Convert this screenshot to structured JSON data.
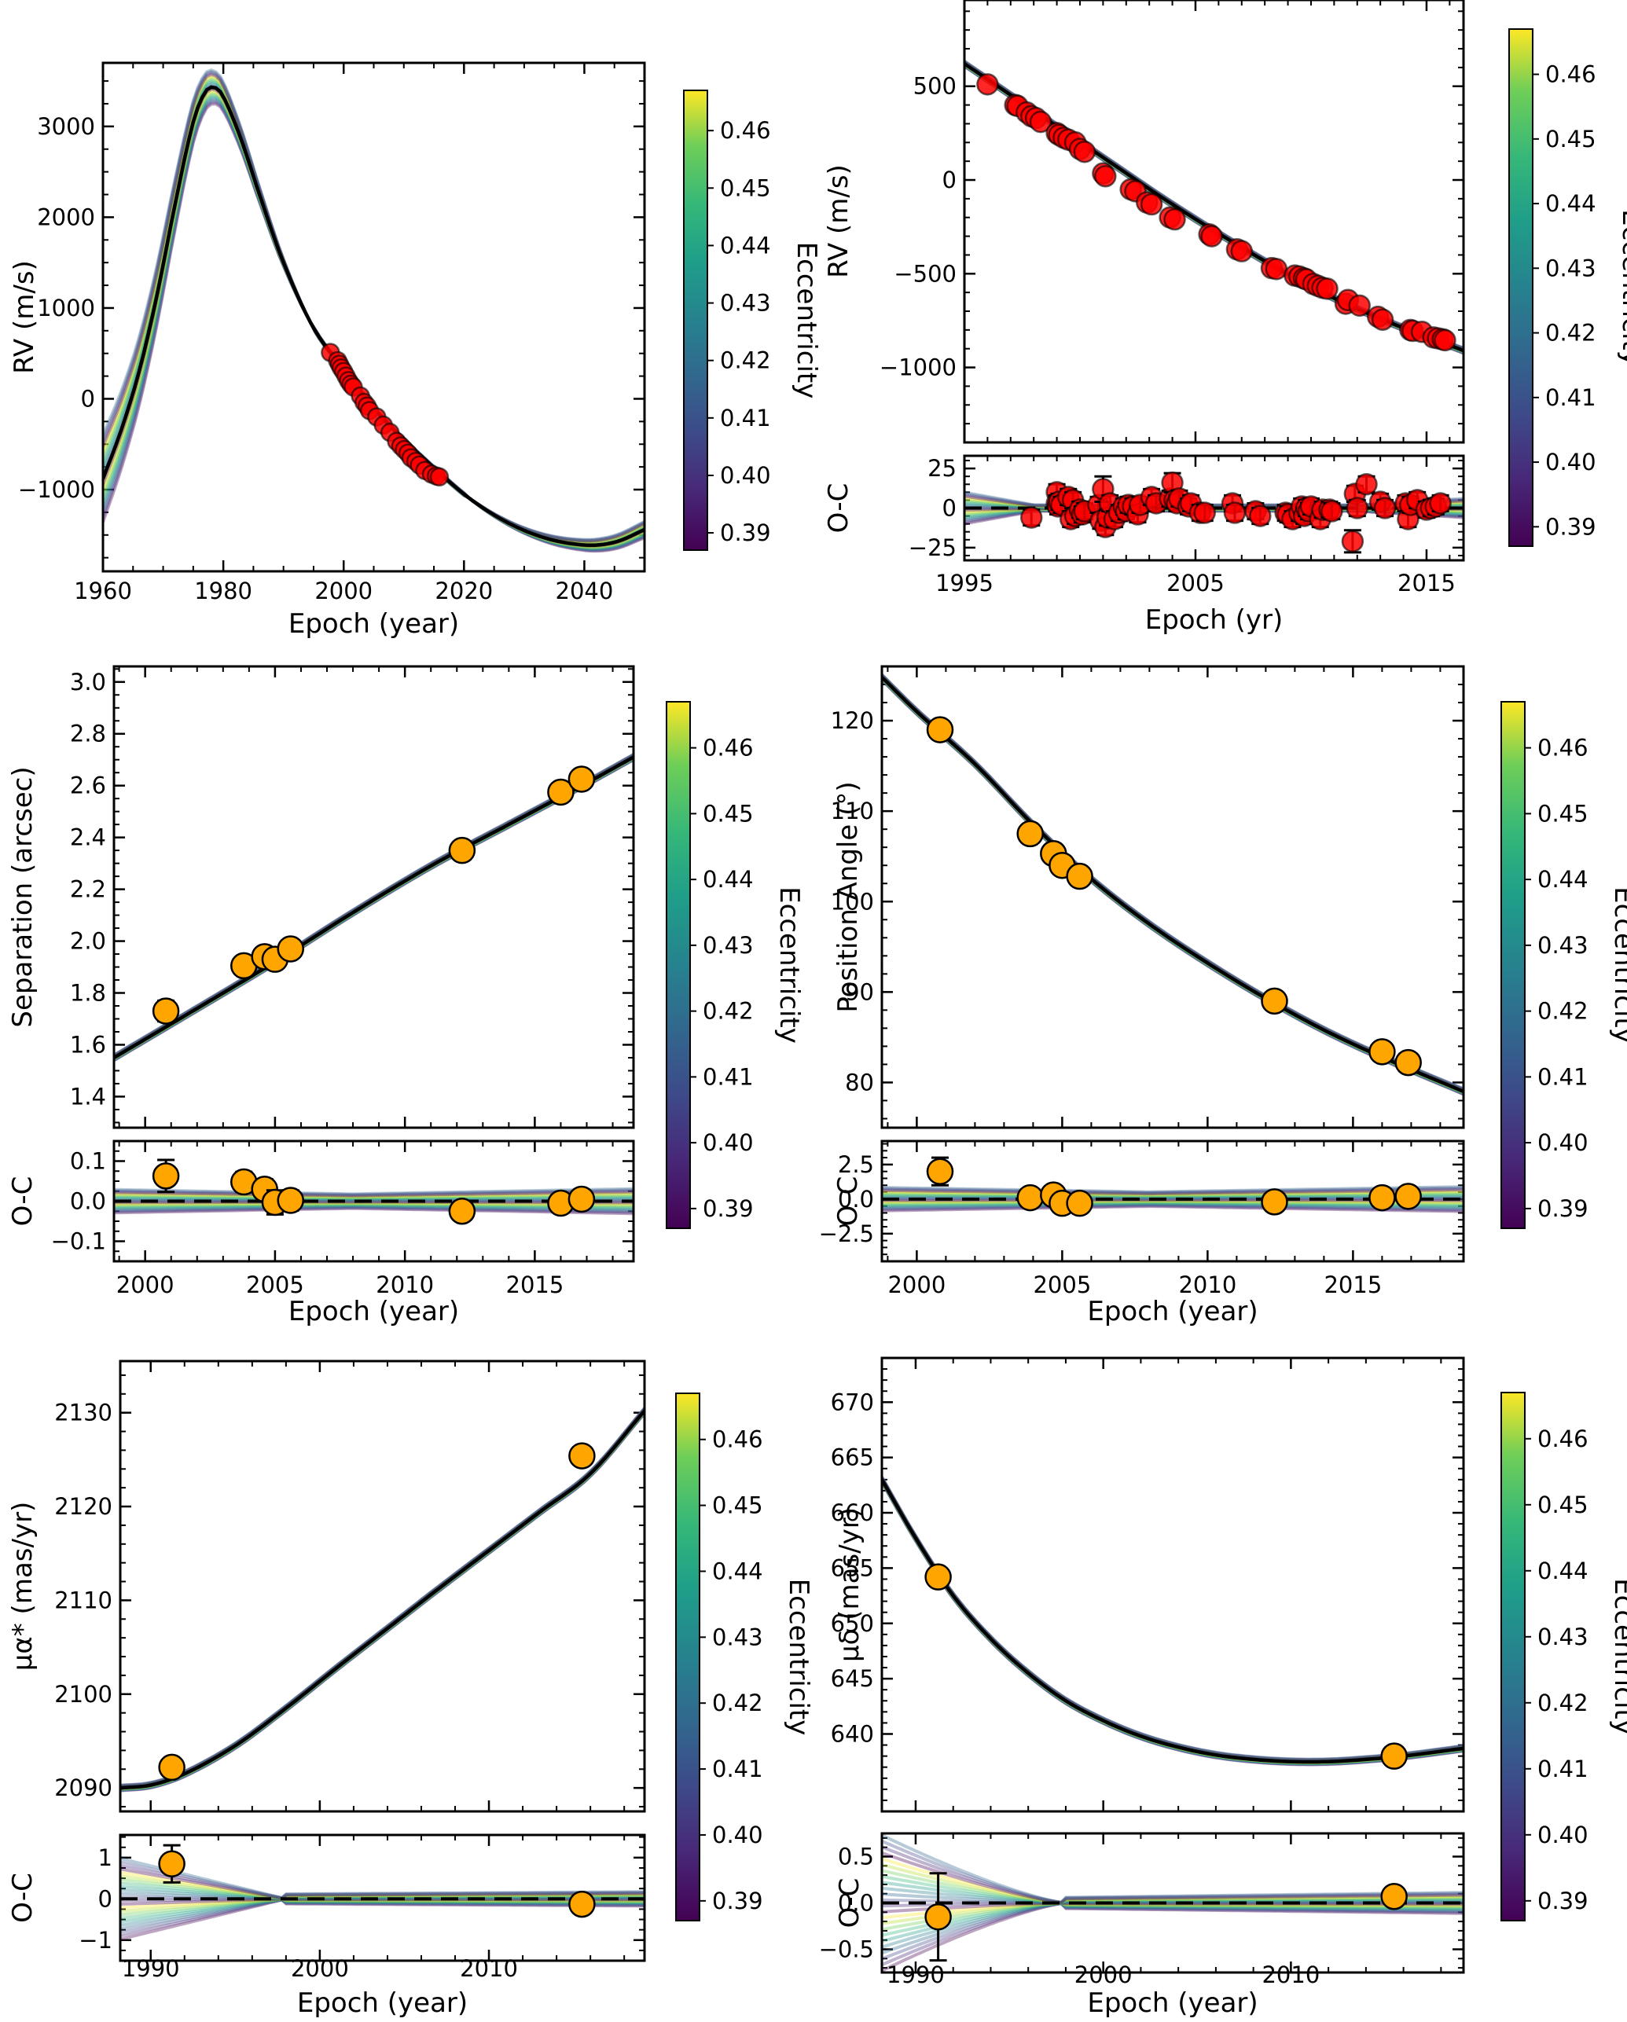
{
  "figure": {
    "colorbar": {
      "label": "Eccentricity",
      "range": [
        0.387,
        0.467
      ],
      "ticks": [
        0.39,
        0.4,
        0.41,
        0.42,
        0.43,
        0.44,
        0.45,
        0.46
      ],
      "tick_labels": [
        "0.39",
        "0.40",
        "0.41",
        "0.42",
        "0.43",
        "0.44",
        "0.45",
        "0.46"
      ],
      "colormap": "viridis"
    },
    "colors": {
      "rv_marker": "#ff0000",
      "astrometry_marker": "#ffa500",
      "best_fit_line": "#000000",
      "zero_line": "#000000"
    }
  },
  "chart_data": [
    {
      "id": "rv_full",
      "type": "line",
      "title": "",
      "xlabel": "Epoch (year)",
      "ylabel": "RV (m/s)",
      "xlim": [
        1960,
        2050
      ],
      "ylim": [
        -1900,
        3700
      ],
      "xticks": [
        1960,
        1980,
        2000,
        2020,
        2040
      ],
      "xtick_labels": [
        "1960",
        "1980",
        "2000",
        "2020",
        "2040"
      ],
      "yticks": [
        -1000,
        0,
        1000,
        2000,
        3000
      ],
      "ytick_labels": [
        "−1000",
        "0",
        "1000",
        "2000",
        "3000"
      ],
      "best_fit": {
        "x": [
          1960,
          1963,
          1966,
          1969,
          1972,
          1975,
          1977,
          1978.5,
          1980,
          1983,
          1986,
          1990,
          1995,
          2000,
          2005,
          2010,
          2015,
          2020,
          2025,
          2030,
          2035,
          2040,
          2043,
          2046,
          2050
        ],
        "y": [
          -880,
          -350,
          300,
          1150,
          2150,
          3050,
          3380,
          3430,
          3330,
          2850,
          2250,
          1500,
          780,
          330,
          -100,
          -450,
          -760,
          -1050,
          -1280,
          -1450,
          -1560,
          -1610,
          -1605,
          -1560,
          -1440
        ]
      },
      "sample_spread_at_start": [
        -1230,
        -150
      ],
      "points": {
        "x": [
          1997.8,
          1999.0,
          1999.3,
          1999.6,
          2000.0,
          2000.4,
          2000.8,
          2001.2,
          2001.6,
          2002.8,
          2003.4,
          2003.9,
          2004.3,
          2005.5,
          2006.6,
          2007.7,
          2008.8,
          2009.5,
          2010.1,
          2010.7,
          2011.2,
          2012.0,
          2012.6,
          2013.5,
          2014.6,
          2015.4,
          2015.9
        ],
        "y": [
          510,
          420,
          380,
          340,
          300,
          250,
          200,
          160,
          130,
          30,
          -40,
          -80,
          -130,
          -200,
          -290,
          -370,
          -470,
          -520,
          -560,
          -600,
          -650,
          -690,
          -730,
          -790,
          -830,
          -850,
          -860
        ]
      }
    },
    {
      "id": "rv_zoom",
      "type": "scatter",
      "xlabel": "Epoch (yr)",
      "ylabel": "RV (m/s)",
      "resid_ylabel": "O-C",
      "xlim": [
        1995,
        2016.6
      ],
      "ylim": [
        -1400,
        960
      ],
      "resid_ylim": [
        -33,
        33
      ],
      "xticks": [
        1995,
        2005,
        2015
      ],
      "xtick_labels": [
        "1995",
        "2005",
        "2015"
      ],
      "yticks": [
        -1000,
        -500,
        0,
        500
      ],
      "ytick_labels": [
        "−1000",
        "−500",
        "0",
        "500"
      ],
      "resid_yticks": [
        -25,
        0,
        25
      ],
      "resid_ytick_labels": [
        "−25",
        "0",
        "25"
      ],
      "best_fit": {
        "x": [
          1995,
          1998,
          2001,
          2004,
          2007,
          2010,
          2013,
          2016.6
        ],
        "y": [
          620,
          370,
          120,
          -130,
          -360,
          -570,
          -740,
          -910
        ]
      },
      "points": {
        "x": [
          1996.0,
          1997.2,
          1997.3,
          1997.7,
          1997.9,
          1998.1,
          1998.3,
          1999.0,
          1999.1,
          1999.3,
          1999.5,
          1999.8,
          2000.0,
          2000.2,
          2001.0,
          2001.1,
          2002.2,
          2002.4,
          2002.9,
          2003.1,
          2003.9,
          2004.1,
          2005.6,
          2005.7,
          2006.8,
          2007.0,
          2008.3,
          2008.5,
          2009.3,
          2009.5,
          2009.7,
          2009.8,
          2010.1,
          2010.3,
          2010.5,
          2010.7,
          2011.5,
          2011.6,
          2012.1,
          2012.9,
          2013.1,
          2014.3,
          2014.4,
          2014.8,
          2015.3,
          2015.5,
          2015.7,
          2015.8
        ],
        "y": [
          510,
          400,
          395,
          360,
          340,
          330,
          310,
          250,
          240,
          225,
          215,
          200,
          165,
          150,
          35,
          20,
          -50,
          -60,
          -120,
          -130,
          -200,
          -210,
          -290,
          -300,
          -370,
          -380,
          -470,
          -475,
          -510,
          -515,
          -525,
          -530,
          -555,
          -565,
          -575,
          -580,
          -660,
          -640,
          -670,
          -730,
          -745,
          -800,
          -805,
          -810,
          -840,
          -845,
          -850,
          -855
        ]
      },
      "residuals": {
        "x": [
          1997.9,
          1999.0,
          1999.0,
          1999.05,
          1999.1,
          1999.2,
          1999.5,
          1999.6,
          1999.7,
          1999.8,
          2000.0,
          2000.1,
          2000.2,
          2000.8,
          2000.9,
          2001.0,
          2001.1,
          2001.2,
          2001.3,
          2001.5,
          2001.7,
          2001.9,
          2002.0,
          2002.1,
          2002.3,
          2002.5,
          2002.6,
          2003.1,
          2003.3,
          2003.9,
          2004.0,
          2004.1,
          2004.2,
          2004.3,
          2004.7,
          2004.8,
          2005.2,
          2005.4,
          2006.6,
          2006.7,
          2007.6,
          2007.8,
          2008.9,
          2009.0,
          2009.2,
          2009.5,
          2009.6,
          2009.7,
          2009.8,
          2009.9,
          2010.0,
          2010.4,
          2010.5,
          2010.8,
          2010.9,
          2011.8,
          2011.9,
          2012.0,
          2012.4,
          2013.0,
          2013.2,
          2014.1,
          2014.2,
          2014.3,
          2014.6,
          2015.0,
          2015.2,
          2015.4,
          2015.6
        ],
        "y": [
          -6,
          10,
          3,
          1,
          4,
          2,
          7,
          -7,
          5,
          -5,
          -1,
          -4,
          -2,
          2,
          -8,
          12,
          -12,
          -6,
          3,
          -7,
          -3,
          1,
          -2,
          2,
          1,
          -4,
          2,
          7,
          3,
          6,
          16,
          5,
          3,
          6,
          1,
          3,
          -3,
          -3,
          3,
          -3,
          -2,
          -5,
          -3,
          -4,
          -7,
          -3,
          1,
          -5,
          0,
          -2,
          1,
          -7,
          -1,
          -1,
          -2,
          -21,
          9,
          0,
          15,
          4,
          0,
          3,
          -7,
          2,
          5,
          -1,
          0,
          1,
          3
        ],
        "err": [
          5,
          5,
          5,
          5,
          5,
          5,
          5,
          5,
          5,
          5,
          5,
          5,
          5,
          5,
          5,
          8,
          5,
          5,
          5,
          5,
          5,
          5,
          5,
          5,
          5,
          5,
          5,
          5,
          5,
          5,
          6,
          5,
          5,
          5,
          5,
          5,
          5,
          5,
          5,
          5,
          5,
          5,
          5,
          5,
          5,
          5,
          5,
          5,
          5,
          5,
          5,
          5,
          5,
          5,
          5,
          7,
          5,
          5,
          5,
          5,
          5,
          5,
          5,
          5,
          5,
          5,
          5,
          5,
          5
        ]
      }
    },
    {
      "id": "separation",
      "type": "scatter",
      "xlabel": "Epoch (year)",
      "ylabel": "Separation (arcsec)",
      "resid_ylabel": "O-C",
      "xlim": [
        1998.8,
        2018.8
      ],
      "ylim": [
        1.28,
        3.06
      ],
      "resid_ylim": [
        -0.15,
        0.15
      ],
      "xticks": [
        2000,
        2005,
        2010,
        2015
      ],
      "xtick_labels": [
        "2000",
        "2005",
        "2010",
        "2015"
      ],
      "yticks": [
        1.4,
        1.6,
        1.8,
        2.0,
        2.2,
        2.4,
        2.6,
        2.8,
        3.0
      ],
      "ytick_labels": [
        "1.4",
        "1.6",
        "1.8",
        "2.0",
        "2.2",
        "2.4",
        "2.6",
        "2.8",
        "3.0"
      ],
      "resid_yticks": [
        -0.1,
        0.0,
        0.1
      ],
      "resid_ytick_labels": [
        "−0.1",
        "0.0",
        "0.1"
      ],
      "best_fit": {
        "x": [
          1998.8,
          2002,
          2005,
          2008,
          2011,
          2014,
          2017,
          2018.8
        ],
        "y": [
          1.55,
          1.74,
          1.92,
          2.11,
          2.29,
          2.45,
          2.61,
          2.71
        ]
      },
      "points": {
        "x": [
          2000.8,
          2003.8,
          2004.6,
          2005.0,
          2005.6,
          2012.2,
          2016.0,
          2016.8
        ],
        "y": [
          1.73,
          1.905,
          1.94,
          1.93,
          1.97,
          2.35,
          2.575,
          2.625
        ],
        "err": [
          0.04,
          0.025,
          0.025,
          0.03,
          0.025,
          0.01,
          0.01,
          0.01
        ]
      },
      "residuals": {
        "x": [
          2000.8,
          2003.8,
          2004.6,
          2005.0,
          2005.6,
          2012.2,
          2016.0,
          2016.8
        ],
        "y": [
          0.063,
          0.048,
          0.03,
          -0.003,
          0.002,
          -0.025,
          -0.005,
          0.005
        ],
        "err": [
          0.04,
          0.025,
          0.025,
          0.03,
          0.025,
          0.01,
          0.01,
          0.01
        ]
      }
    },
    {
      "id": "position_angle",
      "type": "scatter",
      "xlabel": "Epoch (year)",
      "ylabel": "Position Angle (°)",
      "resid_ylabel": "O-C",
      "xlim": [
        1998.8,
        2018.8
      ],
      "ylim": [
        75,
        126
      ],
      "resid_ylim": [
        -4.5,
        4.2
      ],
      "xticks": [
        2000,
        2005,
        2010,
        2015
      ],
      "xtick_labels": [
        "2000",
        "2005",
        "2010",
        "2015"
      ],
      "yticks": [
        80,
        90,
        100,
        110,
        120
      ],
      "ytick_labels": [
        "80",
        "90",
        "100",
        "110",
        "120"
      ],
      "resid_yticks": [
        -2.5,
        0.0,
        2.5
      ],
      "resid_ytick_labels": [
        "−2.5",
        "0.0",
        "2.5"
      ],
      "best_fit": {
        "x": [
          1998.8,
          2000,
          2002,
          2004,
          2006,
          2008,
          2010,
          2012,
          2014,
          2016,
          2018.8
        ],
        "y": [
          124.8,
          121.0,
          115.2,
          108.5,
          102.5,
          97.5,
          93.2,
          89.3,
          85.8,
          82.8,
          79.0
        ]
      },
      "points": {
        "x": [
          2000.8,
          2003.9,
          2004.7,
          2005.0,
          2005.6,
          2012.3,
          2016.0,
          2016.9
        ],
        "y": [
          119.0,
          107.5,
          105.3,
          104.0,
          102.8,
          89.0,
          83.4,
          82.2
        ],
        "err": [
          1.0,
          0.5,
          0.8,
          0.5,
          0.5,
          0.3,
          0.3,
          0.3
        ]
      },
      "residuals": {
        "x": [
          2000.8,
          2003.9,
          2004.7,
          2005.0,
          2005.6,
          2012.3,
          2016.0,
          2016.9
        ],
        "y": [
          2.0,
          0.1,
          0.3,
          -0.3,
          -0.3,
          -0.2,
          0.1,
          0.2
        ],
        "err": [
          1.0,
          0.5,
          0.6,
          0.4,
          0.4,
          0.2,
          0.2,
          0.2
        ]
      }
    },
    {
      "id": "pm_ra",
      "type": "scatter",
      "xlabel": "Epoch (year)",
      "ylabel": "μα* (mas/yr)",
      "resid_ylabel": "O-C",
      "xlim": [
        1988.2,
        2019.2
      ],
      "ylim": [
        2087.5,
        2135.5
      ],
      "resid_ylim": [
        -1.5,
        1.55
      ],
      "xticks": [
        1990,
        2000,
        2010
      ],
      "xtick_labels": [
        "1990",
        "2000",
        "2010"
      ],
      "yticks": [
        2090,
        2100,
        2110,
        2120,
        2130
      ],
      "ytick_labels": [
        "2090",
        "2100",
        "2110",
        "2120",
        "2130"
      ],
      "resid_yticks": [
        -1,
        0,
        1
      ],
      "resid_ytick_labels": [
        "−1",
        "0",
        "1"
      ],
      "best_fit": {
        "x": [
          1988.2,
          1990,
          1992,
          1995,
          1998,
          2001,
          2004,
          2007,
          2010,
          2013,
          2016,
          2019.2
        ],
        "y": [
          2090.0,
          2090.3,
          2091.5,
          2094.5,
          2098.5,
          2102.8,
          2107.0,
          2111.2,
          2115.3,
          2119.4,
          2123.5,
          2130.2
        ]
      },
      "points": {
        "x": [
          1991.25,
          2015.5
        ],
        "y": [
          2092.2,
          2125.4
        ],
        "err": [
          0.4,
          0.02
        ]
      },
      "residuals": {
        "x": [
          1991.25,
          2015.5
        ],
        "y": [
          0.85,
          -0.13
        ],
        "err": [
          0.45,
          0.02
        ]
      }
    },
    {
      "id": "pm_dec",
      "type": "scatter",
      "xlabel": "Epoch (year)",
      "ylabel": "μδ (mas/yr)",
      "resid_ylabel": "O-C",
      "xlim": [
        1988.2,
        2019.2
      ],
      "ylim": [
        633,
        674
      ],
      "resid_ylim": [
        -0.75,
        0.75
      ],
      "xticks": [
        1990,
        2000,
        2010
      ],
      "xtick_labels": [
        "1990",
        "2000",
        "2010"
      ],
      "yticks": [
        640,
        645,
        650,
        655,
        660,
        665,
        670
      ],
      "ytick_labels": [
        "640",
        "645",
        "650",
        "655",
        "660",
        "665",
        "670"
      ],
      "resid_yticks": [
        -0.5,
        0.0,
        0.5
      ],
      "resid_ytick_labels": [
        "−0.5",
        "0.0",
        "0.5"
      ],
      "best_fit": {
        "x": [
          1988.2,
          1990,
          1992,
          1994,
          1996,
          1998,
          2000,
          2002,
          2004,
          2006,
          2008,
          2010,
          2012,
          2014,
          2016,
          2019.2
        ],
        "y": [
          663.0,
          657.7,
          652.5,
          648.6,
          645.5,
          643.0,
          641.2,
          639.8,
          638.8,
          638.1,
          637.7,
          637.5,
          637.5,
          637.7,
          638.0,
          638.7
        ]
      },
      "points": {
        "x": [
          1991.2,
          2015.5
        ],
        "y": [
          654.2,
          638.0
        ],
        "err": [
          0.45,
          0.03
        ]
      },
      "residuals": {
        "x": [
          1991.2,
          2015.5
        ],
        "y": [
          -0.15,
          0.07
        ],
        "err": [
          0.47,
          0.03
        ]
      }
    }
  ]
}
